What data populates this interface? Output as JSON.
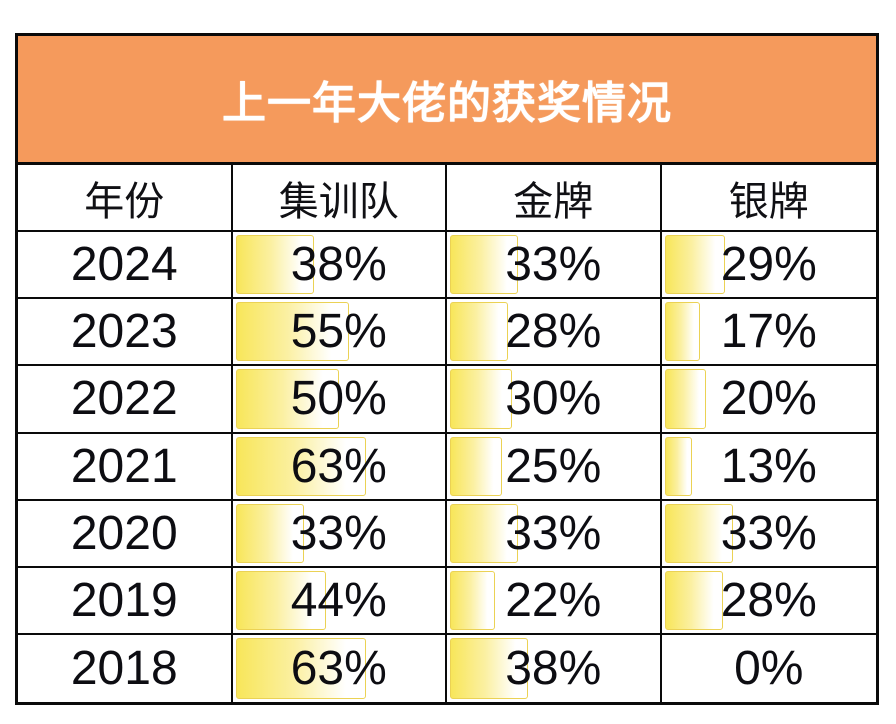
{
  "chart_data": {
    "type": "table",
    "title": "上一年大佬的获奖情况",
    "columns": [
      "年份",
      "集训队",
      "金牌",
      "银牌"
    ],
    "rows": [
      {
        "year": "2024",
        "values": [
          38,
          33,
          29
        ],
        "labels": [
          "38%",
          "33%",
          "29%"
        ]
      },
      {
        "year": "2023",
        "values": [
          55,
          28,
          17
        ],
        "labels": [
          "55%",
          "28%",
          "17%"
        ]
      },
      {
        "year": "2022",
        "values": [
          50,
          30,
          20
        ],
        "labels": [
          "50%",
          "30%",
          "20%"
        ]
      },
      {
        "year": "2021",
        "values": [
          63,
          25,
          13
        ],
        "labels": [
          "63%",
          "25%",
          "13%"
        ]
      },
      {
        "year": "2020",
        "values": [
          33,
          33,
          33
        ],
        "labels": [
          "33%",
          "33%",
          "33%"
        ]
      },
      {
        "year": "2019",
        "values": [
          44,
          22,
          28
        ],
        "labels": [
          "44%",
          "22%",
          "28%"
        ]
      },
      {
        "year": "2018",
        "values": [
          63,
          38,
          0
        ],
        "labels": [
          "63%",
          "38%",
          "0%"
        ]
      }
    ],
    "layout": {
      "bar_scale_max": 100,
      "bars_in_cells": true,
      "grid_lines": "black",
      "legend": "none"
    },
    "colors": {
      "banner_background": "#F59A5C",
      "banner_text": "#FFFFFF",
      "cell_text": "#0D0D12",
      "grid_border": "#0A0A0A",
      "bar_fill_start": "#F8E65A",
      "bar_fill_end": "#FFFFFF",
      "bar_border": "#EBD254"
    }
  }
}
